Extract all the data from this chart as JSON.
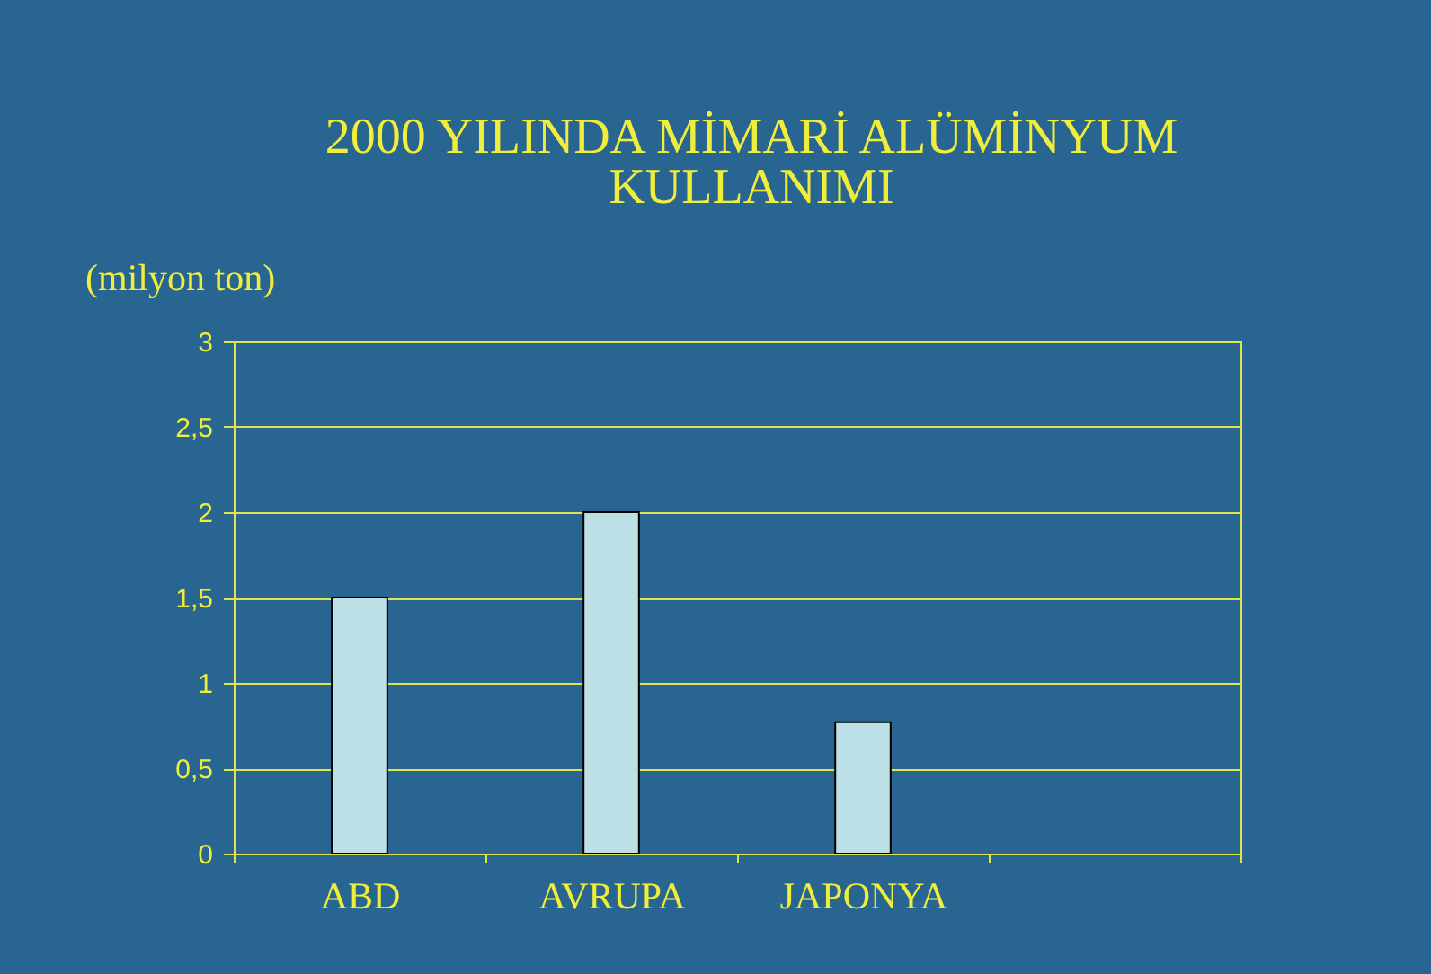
{
  "chart_data": {
    "type": "bar",
    "title": "2000 YILINDA MİMARİ ALÜMİNYUM\nKULLANIMI",
    "ylabel": "(milyon ton)",
    "categories": [
      "ABD",
      "AVRUPA",
      "JAPONYA",
      null
    ],
    "values": [
      1.5,
      2,
      0.77,
      null
    ],
    "color": "#bde0e6",
    "ylim": [
      0,
      3
    ],
    "yticks": [
      0,
      {
        "value": 0.5,
        "label": "0,5"
      },
      1,
      {
        "value": 1.5,
        "label": "1,5"
      },
      2,
      {
        "value": 2.5,
        "label": "2,5"
      },
      3
    ],
    "grid": "y"
  }
}
